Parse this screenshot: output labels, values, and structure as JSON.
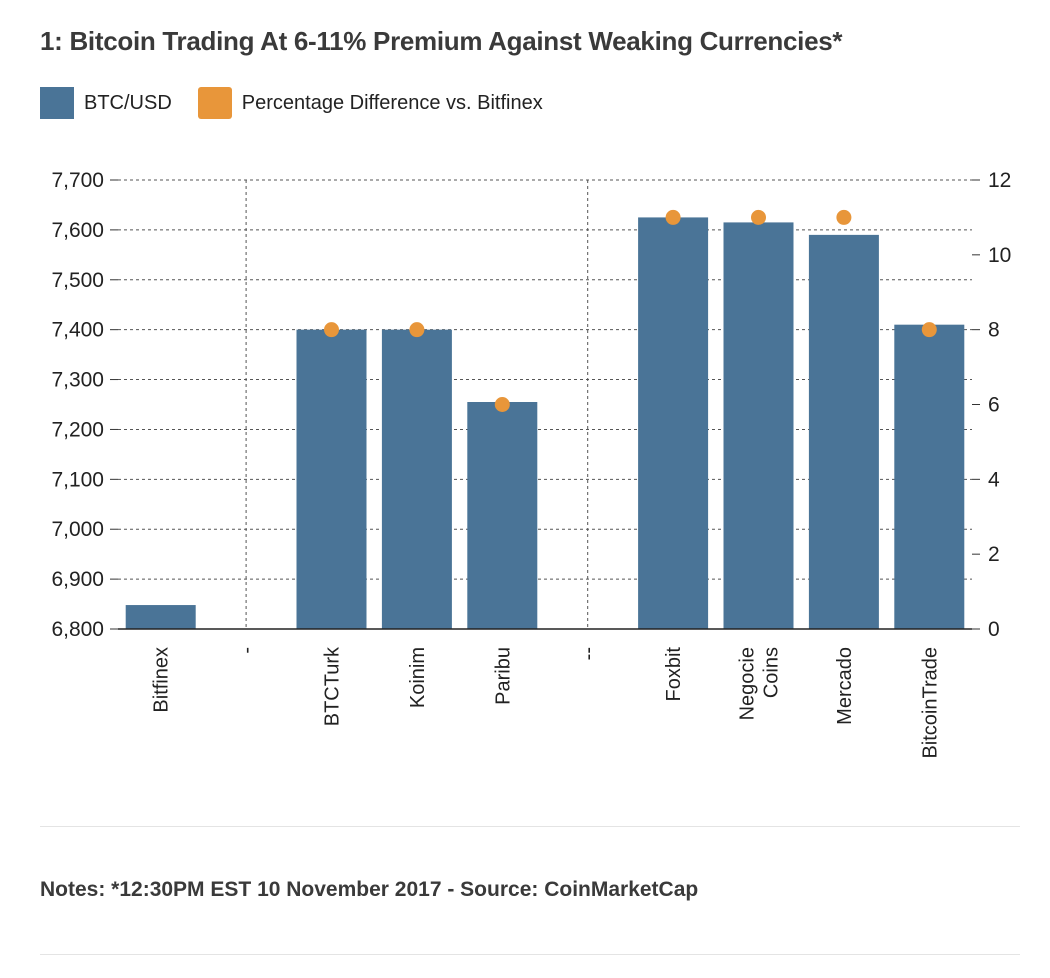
{
  "title": "1: Bitcoin Trading At 6-11% Premium Against Weaking Currencies*",
  "notes": "Notes: *12:30PM EST 10 November 2017 - Source: CoinMarketCap",
  "colors": {
    "bar": "#4a7497",
    "dot": "#e8963a"
  },
  "chart_data": {
    "type": "bar",
    "categories": [
      "Bitfinex",
      "-",
      "BTCTurk",
      "Koinim",
      "Paribu",
      "--",
      "Foxbit",
      "Negocie\nCoins",
      "Mercado",
      "BitcoinTrade"
    ],
    "series": [
      {
        "name": "BTC/USD",
        "type": "bar",
        "axis": "left",
        "color": "#4a7497",
        "values": [
          6848,
          null,
          7400,
          7400,
          7255,
          null,
          7625,
          7615,
          7590,
          7410
        ]
      },
      {
        "name": "Percentage Difference vs. Bitfinex",
        "type": "scatter",
        "axis": "right",
        "color": "#e8963a",
        "values": [
          null,
          null,
          8,
          8,
          6,
          null,
          11,
          11,
          11,
          8
        ]
      }
    ],
    "ylim_left": [
      6800,
      7700
    ],
    "yticks_left": [
      "6,800",
      "6,900",
      "7,000",
      "7,100",
      "7,200",
      "7,300",
      "7,400",
      "7,500",
      "7,600",
      "7,700"
    ],
    "ylim_right": [
      0,
      12
    ],
    "yticks_right": [
      "0",
      "2",
      "4",
      "6",
      "8",
      "10",
      "12"
    ],
    "grid": true,
    "legend_position": "top-left"
  }
}
